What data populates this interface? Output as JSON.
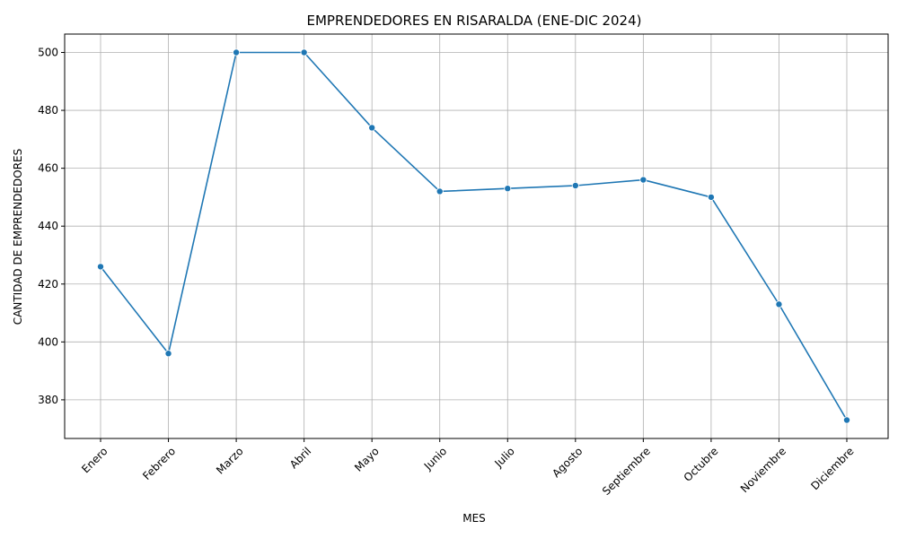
{
  "chart_data": {
    "type": "line",
    "title": "EMPRENDEDORES EN RISARALDA (ENE-DIC 2024)",
    "xlabel": "MES",
    "ylabel": "CANTIDAD DE EMPRENDEDORES",
    "categories": [
      "Enero",
      "Febrero",
      "Marzo",
      "Abril",
      "Mayo",
      "Junio",
      "Julio",
      "Agosto",
      "Septiembre",
      "Octubre",
      "Noviembre",
      "Diciembre"
    ],
    "series": [
      {
        "values": [
          426,
          396,
          500,
          500,
          474,
          452,
          453,
          454,
          456,
          450,
          413,
          373
        ]
      }
    ],
    "ylim": [
      366.65,
      506.35
    ],
    "yticks": [
      380,
      400,
      420,
      440,
      460,
      480,
      500
    ],
    "grid": true,
    "marker": "circle",
    "line_color": "#1f77b4",
    "grid_color": "#b0b0b0"
  }
}
